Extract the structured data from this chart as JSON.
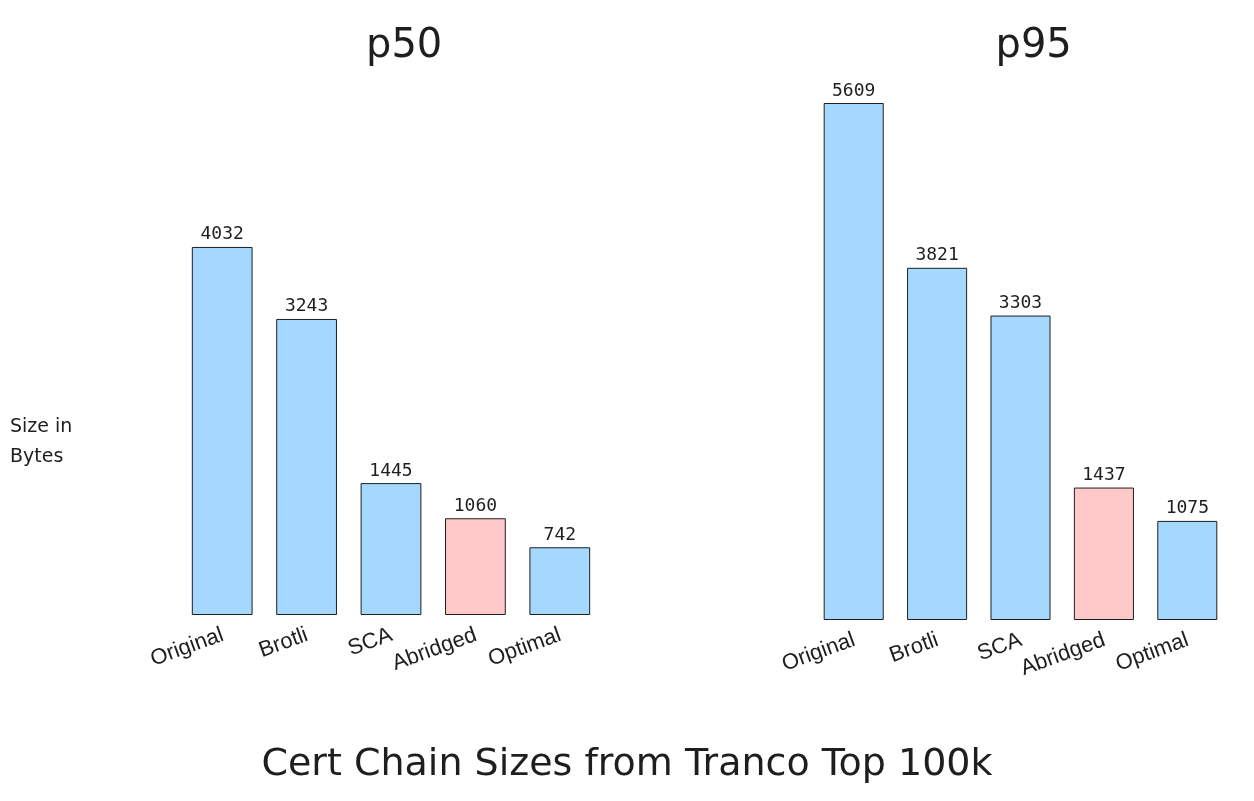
{
  "chart_data": [
    {
      "type": "bar",
      "title": "p50",
      "ylabel": "Size in Bytes",
      "categories": [
        "Original",
        "Brotli",
        "SCA",
        "Abridged",
        "Optimal"
      ],
      "values": [
        4032,
        3243,
        1445,
        1060,
        742
      ],
      "colors": [
        "#a5d8ff",
        "#a5d8ff",
        "#a5d8ff",
        "#ffc9c9",
        "#a5d8ff"
      ],
      "data_labels": true,
      "annotations": [
        "Cert Chain Sizes from Tranco Top 100k"
      ]
    },
    {
      "type": "bar",
      "title": "p95",
      "categories": [
        "Original",
        "Brotli",
        "SCA",
        "Abridged",
        "Optimal"
      ],
      "values": [
        5609,
        3821,
        3303,
        1437,
        1075
      ],
      "colors": [
        "#a5d8ff",
        "#a5d8ff",
        "#a5d8ff",
        "#ffc9c9",
        "#a5d8ff"
      ],
      "data_labels": true
    }
  ]
}
